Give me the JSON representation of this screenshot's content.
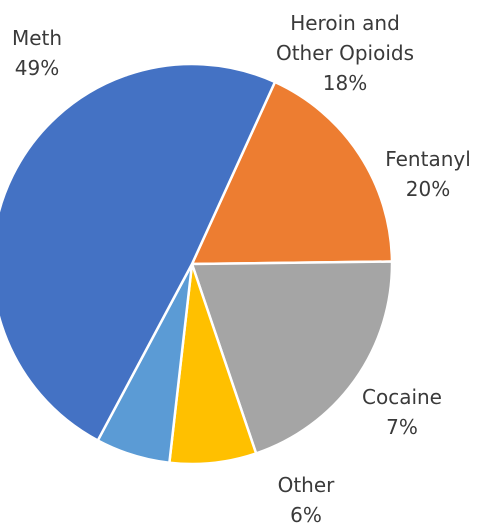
{
  "chart_data": {
    "type": "pie",
    "title": "",
    "slices": [
      {
        "label": "Heroin and Other Opioids",
        "label_lines": [
          "Heroin and",
          "Other Opioids"
        ],
        "value": 18,
        "value_label": "18%",
        "color": "#ED7D31"
      },
      {
        "label": "Fentanyl",
        "label_lines": [
          "Fentanyl"
        ],
        "value": 20,
        "value_label": "20%",
        "color": "#A5A5A5"
      },
      {
        "label": "Cocaine",
        "label_lines": [
          "Cocaine"
        ],
        "value": 7,
        "value_label": "7%",
        "color": "#FFC000"
      },
      {
        "label": "Other",
        "label_lines": [
          "Other"
        ],
        "value": 6,
        "value_label": "6%",
        "color": "#5B9BD5"
      },
      {
        "label": "Meth",
        "label_lines": [
          "Meth"
        ],
        "value": 49,
        "value_label": "49%",
        "color": "#4472C4"
      }
    ],
    "legend": "none"
  }
}
